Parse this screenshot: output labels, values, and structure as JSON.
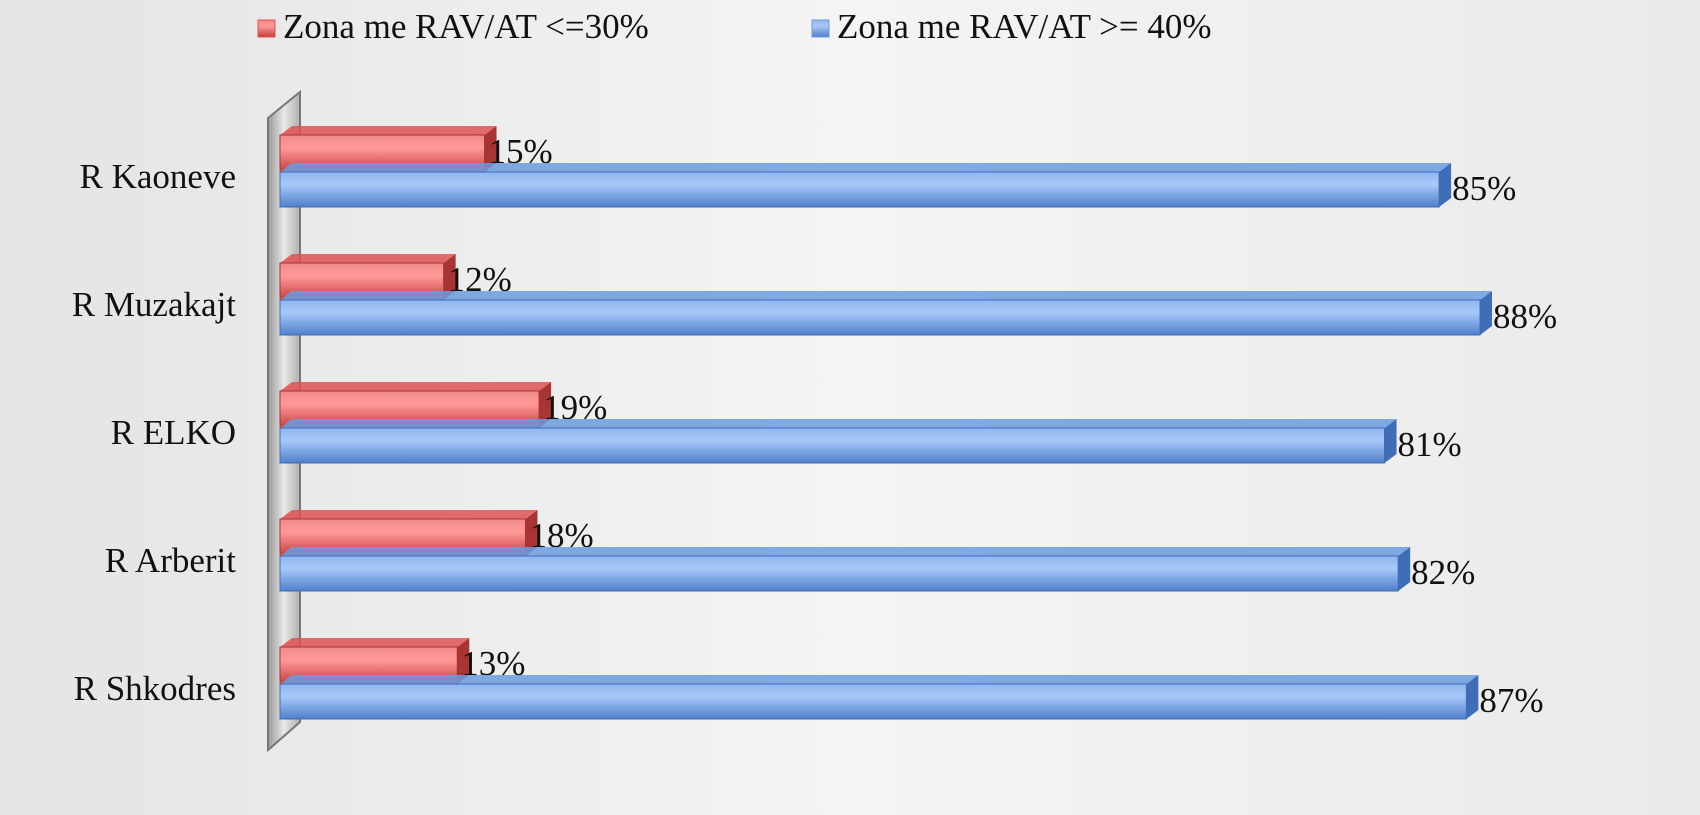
{
  "chart_data": {
    "type": "bar",
    "orientation": "horizontal",
    "categories": [
      "R Kaoneve",
      "R Muzakajt",
      "R ELKO",
      "R Arberit",
      "R Shkodres"
    ],
    "series": [
      {
        "name": "Zona me RAV/AT <=30%",
        "color": "#e05252",
        "values": [
          15,
          12,
          19,
          18,
          13
        ],
        "value_labels": [
          "15%",
          "12%",
          "19%",
          "18%",
          "13%"
        ]
      },
      {
        "name": "Zona me RAV/AT >= 40%",
        "color": "#6b9be0",
        "values": [
          85,
          88,
          81,
          82,
          87
        ],
        "value_labels": [
          "85%",
          "88%",
          "81%",
          "82%",
          "87%"
        ]
      }
    ],
    "legend": "top"
  }
}
